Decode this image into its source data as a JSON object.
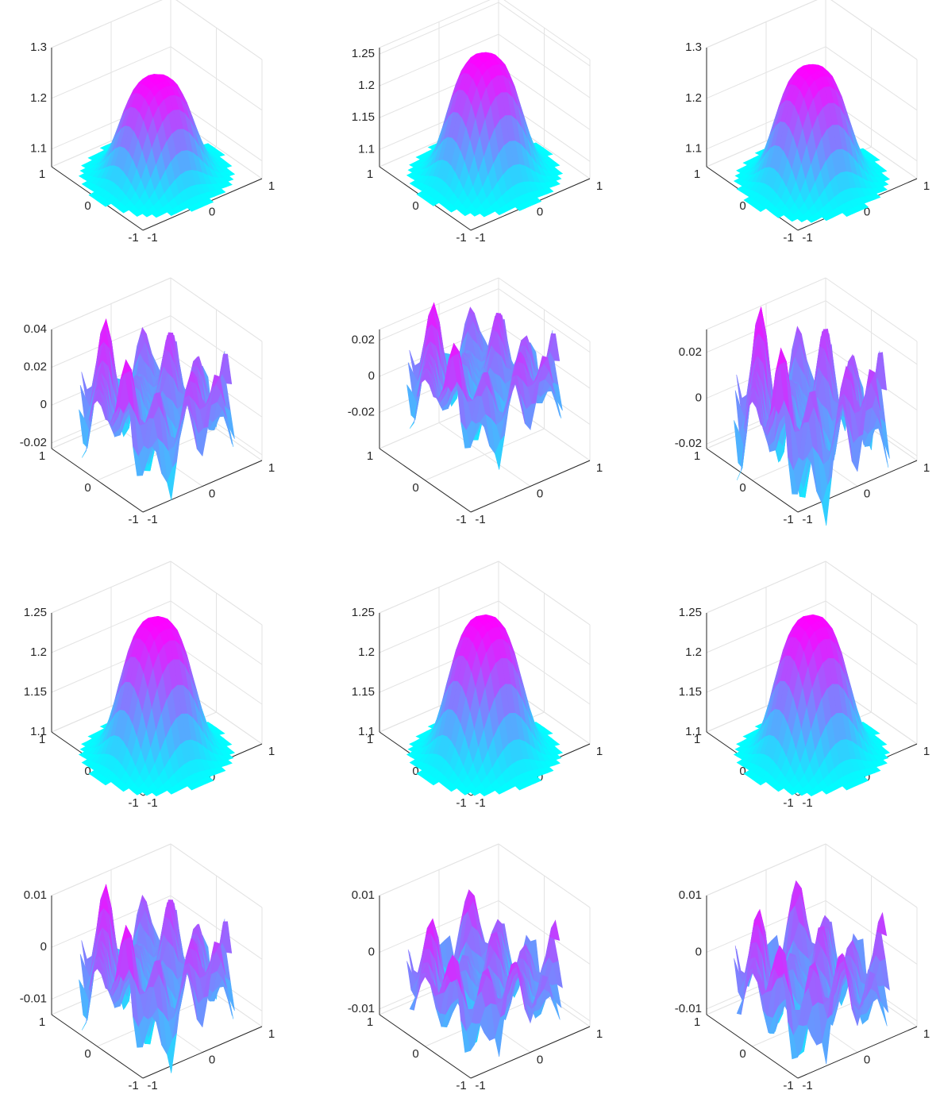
{
  "chart_data": [
    {
      "type": "surface",
      "shape": "bell",
      "zlim": [
        1.065,
        1.3
      ],
      "zticks": [
        1.1,
        1.2,
        1.3
      ],
      "zrange": [
        1.06,
        1.25
      ],
      "xticks": [
        -1,
        0,
        1
      ],
      "yticks": [
        -1,
        0,
        1
      ],
      "colormap": [
        "#00ffff",
        "#ff00ff"
      ]
    },
    {
      "type": "surface",
      "shape": "bell",
      "zlim": [
        1.073,
        1.26
      ],
      "zticks": [
        1.1,
        1.15,
        1.2,
        1.25
      ],
      "zrange": [
        1.07,
        1.255
      ],
      "xticks": [
        -1,
        0,
        1
      ],
      "yticks": [
        -1,
        0,
        1
      ],
      "colormap": [
        "#00ffff",
        "#ff00ff"
      ]
    },
    {
      "type": "surface",
      "shape": "bell",
      "zlim": [
        1.065,
        1.3
      ],
      "zticks": [
        1.1,
        1.2,
        1.3
      ],
      "zrange": [
        1.05,
        1.27
      ],
      "xticks": [
        -1,
        0,
        1
      ],
      "yticks": [
        -1,
        0,
        1
      ],
      "colormap": [
        "#00ffff",
        "#ff00ff"
      ]
    },
    {
      "type": "surface",
      "shape": "ripple",
      "zlim": [
        -0.023,
        0.04
      ],
      "zticks": [
        -0.02,
        0,
        0.02,
        0.04
      ],
      "zrange": [
        -0.03,
        0.045
      ],
      "xticks": [
        -1,
        0,
        1
      ],
      "yticks": [
        -1,
        0,
        1
      ],
      "colormap": [
        "#00ffff",
        "#ff00ff"
      ]
    },
    {
      "type": "surface",
      "shape": "ripple",
      "zlim": [
        -0.04,
        0.026
      ],
      "zticks": [
        -0.02,
        0,
        0.02
      ],
      "zrange": [
        -0.03,
        0.04
      ],
      "xticks": [
        -1,
        0,
        1
      ],
      "yticks": [
        -1,
        0,
        1
      ],
      "colormap": [
        "#00ffff",
        "#ff00ff"
      ]
    },
    {
      "type": "surface",
      "shape": "ripple",
      "zlim": [
        -0.022,
        0.03
      ],
      "zticks": [
        -0.02,
        0,
        0.02
      ],
      "zrange": [
        -0.04,
        0.04
      ],
      "xticks": [
        -1,
        0,
        1
      ],
      "yticks": [
        -1,
        0,
        1
      ],
      "colormap": [
        "#00ffff",
        "#ff00ff"
      ]
    },
    {
      "type": "surface",
      "shape": "bell",
      "zlim": [
        1.1,
        1.25
      ],
      "zticks": [
        1.1,
        1.15,
        1.2,
        1.25
      ],
      "zrange": [
        1.08,
        1.248
      ],
      "xticks": [
        -1,
        0,
        1
      ],
      "yticks": [
        -1,
        0,
        1
      ],
      "colormap": [
        "#00ffff",
        "#ff00ff"
      ]
    },
    {
      "type": "surface",
      "shape": "bell",
      "zlim": [
        1.1,
        1.25
      ],
      "zticks": [
        1.1,
        1.15,
        1.2,
        1.25
      ],
      "zrange": [
        1.08,
        1.25
      ],
      "xticks": [
        -1,
        0,
        1
      ],
      "yticks": [
        -1,
        0,
        1
      ],
      "colormap": [
        "#00ffff",
        "#ff00ff"
      ]
    },
    {
      "type": "surface",
      "shape": "bell",
      "zlim": [
        1.1,
        1.25
      ],
      "zticks": [
        1.1,
        1.15,
        1.2,
        1.25
      ],
      "zrange": [
        1.08,
        1.25
      ],
      "xticks": [
        -1,
        0,
        1
      ],
      "yticks": [
        -1,
        0,
        1
      ],
      "colormap": [
        "#00ffff",
        "#ff00ff"
      ]
    },
    {
      "type": "surface",
      "shape": "ripple",
      "zlim": [
        -0.013,
        0.01
      ],
      "zticks": [
        -0.01,
        0,
        0.01
      ],
      "zrange": [
        -0.017,
        0.012
      ],
      "xticks": [
        -1,
        0,
        1
      ],
      "yticks": [
        -1,
        0,
        1
      ],
      "colormap": [
        "#00ffff",
        "#ff00ff"
      ]
    },
    {
      "type": "surface",
      "shape": "ripple",
      "zlim": [
        -0.011,
        0.01
      ],
      "zticks": [
        -0.01,
        0,
        0.01
      ],
      "zrange": [
        -0.014,
        0.008
      ],
      "xticks": [
        -1,
        0,
        1
      ],
      "yticks": [
        -1,
        0,
        1
      ],
      "colormap": [
        "#00ffff",
        "#ff00ff"
      ]
    },
    {
      "type": "surface",
      "shape": "ripple",
      "zlim": [
        -0.011,
        0.01
      ],
      "zticks": [
        -0.01,
        0,
        0.01
      ],
      "zrange": [
        -0.016,
        0.01
      ],
      "xticks": [
        -1,
        0,
        1
      ],
      "yticks": [
        -1,
        0,
        1
      ],
      "colormap": [
        "#00ffff",
        "#ff00ff"
      ]
    }
  ]
}
